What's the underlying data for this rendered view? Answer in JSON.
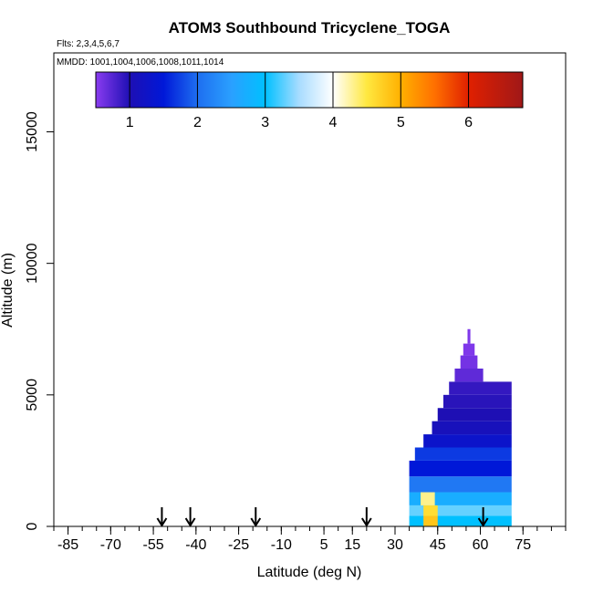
{
  "chart_data": {
    "type": "heatmap",
    "title": "ATOM3 Southbound Tricyclene_TOGA",
    "flights_label": "Flts: 2,3,4,5,6,7",
    "dates_label": "MMDD: 1001,1004,1006,1008,1011,1014",
    "xlabel": "Latitude (deg N)",
    "ylabel": "Altitude (m)",
    "xlim": [
      -90,
      90
    ],
    "ylim": [
      0,
      18000
    ],
    "x_ticks": [
      -85,
      -70,
      -55,
      -40,
      -25,
      -10,
      5,
      15,
      30,
      45,
      60,
      75
    ],
    "x_tick_labels": [
      "-85",
      "-70",
      "-55",
      "-40",
      "-25",
      "-10",
      "5",
      "15",
      "30",
      "45",
      "60",
      "75"
    ],
    "y_ticks": [
      0,
      5000,
      10000,
      15000
    ],
    "y_tick_labels": [
      "0",
      "5000",
      "10000",
      "15000"
    ],
    "colorbar": {
      "range": [
        0.5,
        6.8
      ],
      "ticks": [
        1,
        2,
        3,
        4,
        5,
        6
      ],
      "tick_labels": [
        "1",
        "2",
        "3",
        "4",
        "5",
        "6"
      ],
      "stops": [
        {
          "v": 0.5,
          "c": "#8a3cf0"
        },
        {
          "v": 1.0,
          "c": "#1e0fb4"
        },
        {
          "v": 1.5,
          "c": "#0018d8"
        },
        {
          "v": 2.0,
          "c": "#1e6ef0"
        },
        {
          "v": 2.5,
          "c": "#2aa0ff"
        },
        {
          "v": 3.0,
          "c": "#00c0ff"
        },
        {
          "v": 3.5,
          "c": "#a8dcff"
        },
        {
          "v": 4.0,
          "c": "#ffffff"
        },
        {
          "v": 4.5,
          "c": "#ffe840"
        },
        {
          "v": 5.0,
          "c": "#ffb000"
        },
        {
          "v": 5.5,
          "c": "#ff7000"
        },
        {
          "v": 6.0,
          "c": "#e02000"
        },
        {
          "v": 6.8,
          "c": "#a01818"
        }
      ]
    },
    "arrow_latitudes": [
      -52,
      -42,
      -19,
      20,
      61
    ],
    "cells": [
      {
        "lat0": 35,
        "lat1": 71,
        "alt0": 0,
        "alt1": 400,
        "v": 3.0
      },
      {
        "lat0": 40,
        "lat1": 45,
        "alt0": 0,
        "alt1": 400,
        "v": 4.8
      },
      {
        "lat0": 35,
        "lat1": 71,
        "alt0": 400,
        "alt1": 800,
        "v": 3.3
      },
      {
        "lat0": 40,
        "lat1": 45,
        "alt0": 400,
        "alt1": 800,
        "v": 4.6
      },
      {
        "lat0": 35,
        "lat1": 71,
        "alt0": 800,
        "alt1": 1300,
        "v": 2.7
      },
      {
        "lat0": 39,
        "lat1": 44,
        "alt0": 800,
        "alt1": 1300,
        "v": 4.3
      },
      {
        "lat0": 35,
        "lat1": 71,
        "alt0": 1300,
        "alt1": 1900,
        "v": 2.1
      },
      {
        "lat0": 35,
        "lat1": 71,
        "alt0": 1900,
        "alt1": 2500,
        "v": 1.5
      },
      {
        "lat0": 37,
        "lat1": 71,
        "alt0": 2500,
        "alt1": 3000,
        "v": 1.7
      },
      {
        "lat0": 40,
        "lat1": 71,
        "alt0": 3000,
        "alt1": 3500,
        "v": 1.3
      },
      {
        "lat0": 43,
        "lat1": 71,
        "alt0": 3500,
        "alt1": 4000,
        "v": 1.1
      },
      {
        "lat0": 45,
        "lat1": 71,
        "alt0": 4000,
        "alt1": 4500,
        "v": 1.0
      },
      {
        "lat0": 47,
        "lat1": 71,
        "alt0": 4500,
        "alt1": 5000,
        "v": 0.95
      },
      {
        "lat0": 49,
        "lat1": 71,
        "alt0": 5000,
        "alt1": 5500,
        "v": 0.9
      },
      {
        "lat0": 51,
        "lat1": 61,
        "alt0": 5500,
        "alt1": 6000,
        "v": 0.7
      },
      {
        "lat0": 53,
        "lat1": 59,
        "alt0": 6000,
        "alt1": 6500,
        "v": 0.6
      },
      {
        "lat0": 54,
        "lat1": 58,
        "alt0": 6500,
        "alt1": 6950,
        "v": 0.55
      },
      {
        "lat0": 55.5,
        "lat1": 56.5,
        "alt0": 6950,
        "alt1": 7500,
        "v": 0.55
      }
    ]
  }
}
